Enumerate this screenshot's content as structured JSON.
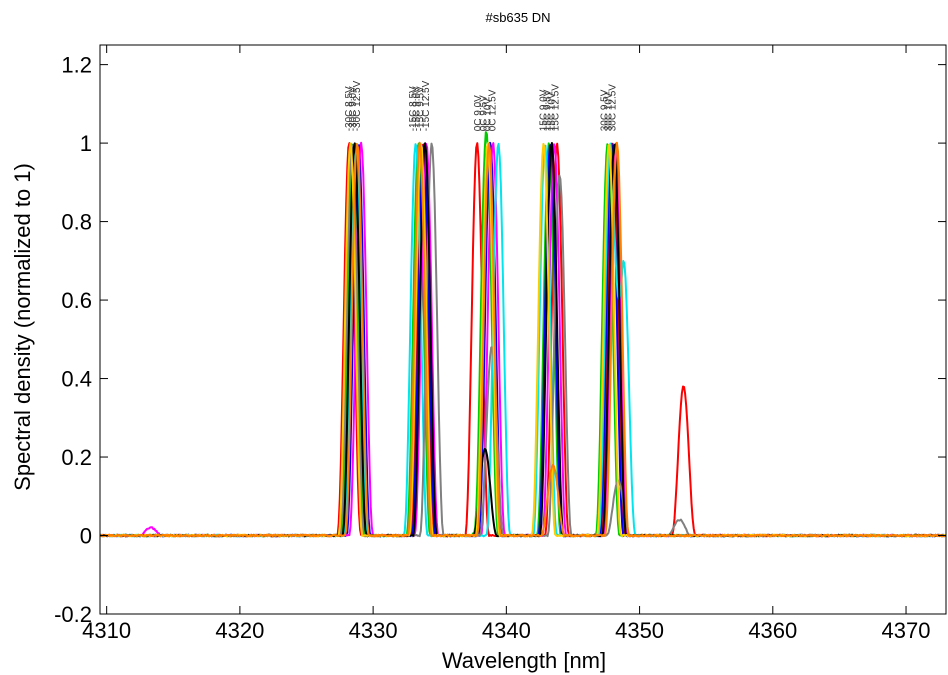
{
  "chart_data": {
    "type": "line",
    "title": "#sb635 DN",
    "xlabel": "Wavelength [nm]",
    "ylabel": "Spectral density (normalized to 1)",
    "xlim": [
      4309.5,
      4373
    ],
    "ylim": [
      -0.2,
      1.25
    ],
    "xticks": [
      4310,
      4320,
      4330,
      4340,
      4350,
      4360,
      4370
    ],
    "yticks": [
      -0.2,
      0,
      0.2,
      0.4,
      0.6,
      0.8,
      1,
      1.2
    ],
    "ytick_labels": [
      "-0.2",
      "0",
      "0.2",
      "0.4",
      "0.6",
      "0.8",
      "1",
      "1.2"
    ],
    "grid": false,
    "legend": "none",
    "peak_width_nm": 0.9,
    "baseline_noise": 0.004,
    "series": [
      {
        "color": "#ff0000",
        "peaks": [
          [
            4328.2,
            1.0
          ],
          [
            4333.7,
            1.0
          ],
          [
            4337.8,
            1.0
          ],
          [
            4343.8,
            1.0
          ],
          [
            4348.0,
            1.0
          ],
          [
            4353.3,
            0.38
          ]
        ]
      },
      {
        "color": "#00cc00",
        "peaks": [
          [
            4328.5,
            1.0
          ],
          [
            4333.4,
            1.0
          ],
          [
            4338.5,
            1.0
          ],
          [
            4343.2,
            1.0
          ],
          [
            4347.6,
            1.0
          ],
          [
            4338.2,
            0.04
          ]
        ]
      },
      {
        "color": "#0000ff",
        "peaks": [
          [
            4328.9,
            1.0
          ],
          [
            4333.8,
            1.0
          ],
          [
            4338.8,
            1.0
          ],
          [
            4343.3,
            1.0
          ],
          [
            4347.9,
            1.0
          ]
        ]
      },
      {
        "color": "#ff00ff",
        "peaks": [
          [
            4329.1,
            1.0
          ],
          [
            4334.0,
            1.0
          ],
          [
            4339.0,
            1.0
          ],
          [
            4343.6,
            1.0
          ],
          [
            4348.2,
            1.0
          ],
          [
            4313.3,
            0.02
          ]
        ]
      },
      {
        "color": "#00e5ee",
        "peaks": [
          [
            4328.7,
            1.0
          ],
          [
            4333.2,
            1.0
          ],
          [
            4339.4,
            1.0
          ],
          [
            4342.9,
            1.0
          ],
          [
            4348.8,
            0.7
          ],
          [
            4347.8,
            1.0
          ]
        ]
      },
      {
        "color": "#808080",
        "peaks": [
          [
            4328.4,
            1.0
          ],
          [
            4334.4,
            1.0
          ],
          [
            4338.9,
            0.48
          ],
          [
            4344.0,
            0.92
          ],
          [
            4348.4,
            0.14
          ],
          [
            4353.0,
            0.04
          ]
        ]
      },
      {
        "color": "#000000",
        "peaks": [
          [
            4328.6,
            1.0
          ],
          [
            4333.9,
            1.0
          ],
          [
            4338.4,
            0.22
          ],
          [
            4343.4,
            1.0
          ],
          [
            4348.1,
            1.0
          ]
        ]
      },
      {
        "color": "#ffcc00",
        "peaks": [
          [
            4328.3,
            1.0
          ],
          [
            4333.6,
            1.0
          ],
          [
            4338.6,
            1.0
          ],
          [
            4342.8,
            1.0
          ],
          [
            4347.7,
            1.0
          ]
        ]
      },
      {
        "color": "#ff7f00",
        "peaks": [
          [
            4328.8,
            1.0
          ],
          [
            4333.5,
            1.0
          ],
          [
            4338.7,
            1.0
          ],
          [
            4343.5,
            0.18
          ],
          [
            4348.3,
            1.0
          ]
        ]
      }
    ],
    "annotations": [
      {
        "x": 4328.4,
        "text": "-30C 8.5V"
      },
      {
        "x": 4328.7,
        "text": "-30C 9.0V"
      },
      {
        "x": 4329.0,
        "text": "-30C 12.5V"
      },
      {
        "x": 4333.2,
        "text": "-15C 8.5V"
      },
      {
        "x": 4333.5,
        "text": "-15C 9.0V"
      },
      {
        "x": 4333.8,
        "text": "-15C 9.5V"
      },
      {
        "x": 4334.2,
        "text": "-15C 12.5V"
      },
      {
        "x": 4338.1,
        "text": "0C 9.0V"
      },
      {
        "x": 4338.5,
        "text": "0C 9.5V"
      },
      {
        "x": 4338.8,
        "text": "0C 10V"
      },
      {
        "x": 4339.2,
        "text": "0C 12.5V"
      },
      {
        "x": 4343.0,
        "text": "15C 9.0V"
      },
      {
        "x": 4343.3,
        "text": "15C 9.5V"
      },
      {
        "x": 4343.6,
        "text": "15C 10V"
      },
      {
        "x": 4343.9,
        "text": "15C 12.5V"
      },
      {
        "x": 4347.6,
        "text": "30C 9.5V"
      },
      {
        "x": 4347.9,
        "text": "30C 10V"
      },
      {
        "x": 4348.2,
        "text": "30C 12.5V"
      }
    ]
  }
}
